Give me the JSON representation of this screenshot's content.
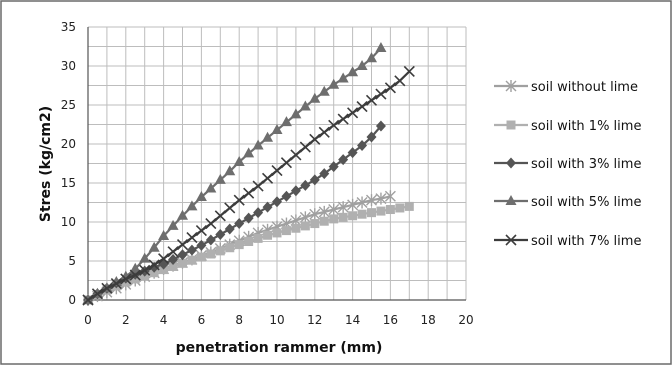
{
  "chart_data": {
    "type": "line",
    "xlabel": "penetration rammer (mm)",
    "ylabel": "Stres (kg/cm2)",
    "xlim": [
      0,
      20
    ],
    "ylim": [
      0,
      35
    ],
    "xticks": [
      0,
      2,
      4,
      6,
      8,
      10,
      12,
      14,
      16,
      18,
      20
    ],
    "yticks": [
      0,
      5,
      10,
      15,
      20,
      25,
      30,
      35
    ],
    "grid": true,
    "legend_position": "right",
    "series": [
      {
        "name": "soil without lime",
        "marker": "asterisk",
        "color": "#a0a0a0",
        "x": [
          0,
          0.5,
          1,
          1.5,
          2,
          2.5,
          3,
          3.5,
          4,
          4.5,
          5,
          5.5,
          6,
          6.5,
          7,
          7.5,
          8,
          8.5,
          9,
          9.5,
          10,
          10.5,
          11,
          11.5,
          12,
          12.5,
          13,
          13.5,
          14,
          14.5,
          15,
          15.5,
          16
        ],
        "y": [
          0,
          0.5,
          1.0,
          1.5,
          2.0,
          2.5,
          3.0,
          3.5,
          4.0,
          4.4,
          4.8,
          5.2,
          5.7,
          6.1,
          6.6,
          7.1,
          7.6,
          8.1,
          8.6,
          9.0,
          9.4,
          9.8,
          10.2,
          10.6,
          11.0,
          11.3,
          11.6,
          11.9,
          12.2,
          12.5,
          12.8,
          13.0,
          13.3
        ]
      },
      {
        "name": "soil with 1% lime",
        "marker": "square",
        "color": "#b0b0b0",
        "x": [
          0,
          0.5,
          1,
          1.5,
          2,
          2.5,
          3,
          3.5,
          4,
          4.5,
          5,
          5.5,
          6,
          6.5,
          7,
          7.5,
          8,
          8.5,
          9,
          9.5,
          10,
          10.5,
          11,
          11.5,
          12,
          12.5,
          13,
          13.5,
          14,
          14.5,
          15,
          15.5,
          16,
          16.5,
          17
        ],
        "y": [
          0,
          0.7,
          1.3,
          1.8,
          2.3,
          2.7,
          3.1,
          3.5,
          3.9,
          4.3,
          4.7,
          5.1,
          5.5,
          5.9,
          6.3,
          6.7,
          7.1,
          7.5,
          7.9,
          8.3,
          8.6,
          8.9,
          9.2,
          9.5,
          9.8,
          10.1,
          10.4,
          10.6,
          10.8,
          11.0,
          11.2,
          11.4,
          11.6,
          11.8,
          12.0
        ]
      },
      {
        "name": "soil with 3% lime",
        "marker": "diamond",
        "color": "#555555",
        "x": [
          0,
          0.5,
          1,
          1.5,
          2,
          2.5,
          3,
          3.5,
          4,
          4.5,
          5,
          5.5,
          6,
          6.5,
          7,
          7.5,
          8,
          8.5,
          9,
          9.5,
          10,
          10.5,
          11,
          11.5,
          12,
          12.5,
          13,
          13.5,
          14,
          14.5,
          15,
          15.5
        ],
        "y": [
          0,
          0.8,
          1.5,
          2.2,
          2.8,
          3.3,
          3.7,
          4.2,
          4.6,
          5.2,
          5.8,
          6.4,
          7.0,
          7.7,
          8.4,
          9.1,
          9.8,
          10.5,
          11.2,
          11.9,
          12.6,
          13.3,
          14.0,
          14.7,
          15.4,
          16.2,
          17.1,
          18.0,
          18.9,
          19.8,
          20.9,
          22.3
        ]
      },
      {
        "name": "soil with 5% lime",
        "marker": "triangle",
        "color": "#6e6e6e",
        "x": [
          0,
          0.5,
          1,
          1.5,
          2,
          2.5,
          3,
          3.5,
          4,
          4.5,
          5,
          5.5,
          6,
          6.5,
          7,
          7.5,
          8,
          8.5,
          9,
          9.5,
          10,
          10.5,
          11,
          11.5,
          12,
          12.5,
          13,
          13.5,
          14,
          14.5,
          15,
          15.5
        ],
        "y": [
          0,
          0.8,
          1.5,
          2.3,
          3.0,
          4.0,
          5.3,
          6.7,
          8.2,
          9.5,
          10.8,
          12.0,
          13.2,
          14.3,
          15.4,
          16.5,
          17.7,
          18.8,
          19.8,
          20.8,
          21.8,
          22.8,
          23.8,
          24.8,
          25.8,
          26.7,
          27.6,
          28.4,
          29.2,
          30.0,
          31.0,
          32.3
        ]
      },
      {
        "name": "soil with 7% lime",
        "marker": "x",
        "color": "#3c3c3c",
        "x": [
          0,
          0.5,
          1,
          1.5,
          2,
          2.5,
          3,
          3.5,
          4,
          4.5,
          5,
          5.5,
          6,
          6.5,
          7,
          7.5,
          8,
          8.5,
          9,
          9.5,
          10,
          10.5,
          11,
          11.5,
          12,
          12.5,
          13,
          13.5,
          14,
          14.5,
          15,
          15.5,
          16,
          16.5,
          17
        ],
        "y": [
          0,
          0.8,
          1.5,
          2.1,
          2.7,
          3.2,
          3.8,
          4.5,
          5.3,
          6.2,
          7.1,
          8.0,
          8.9,
          9.8,
          10.8,
          11.8,
          12.8,
          13.7,
          14.6,
          15.6,
          16.6,
          17.6,
          18.6,
          19.6,
          20.6,
          21.5,
          22.4,
          23.2,
          24.0,
          24.8,
          25.6,
          26.4,
          27.2,
          28.1,
          29.3
        ]
      }
    ]
  }
}
